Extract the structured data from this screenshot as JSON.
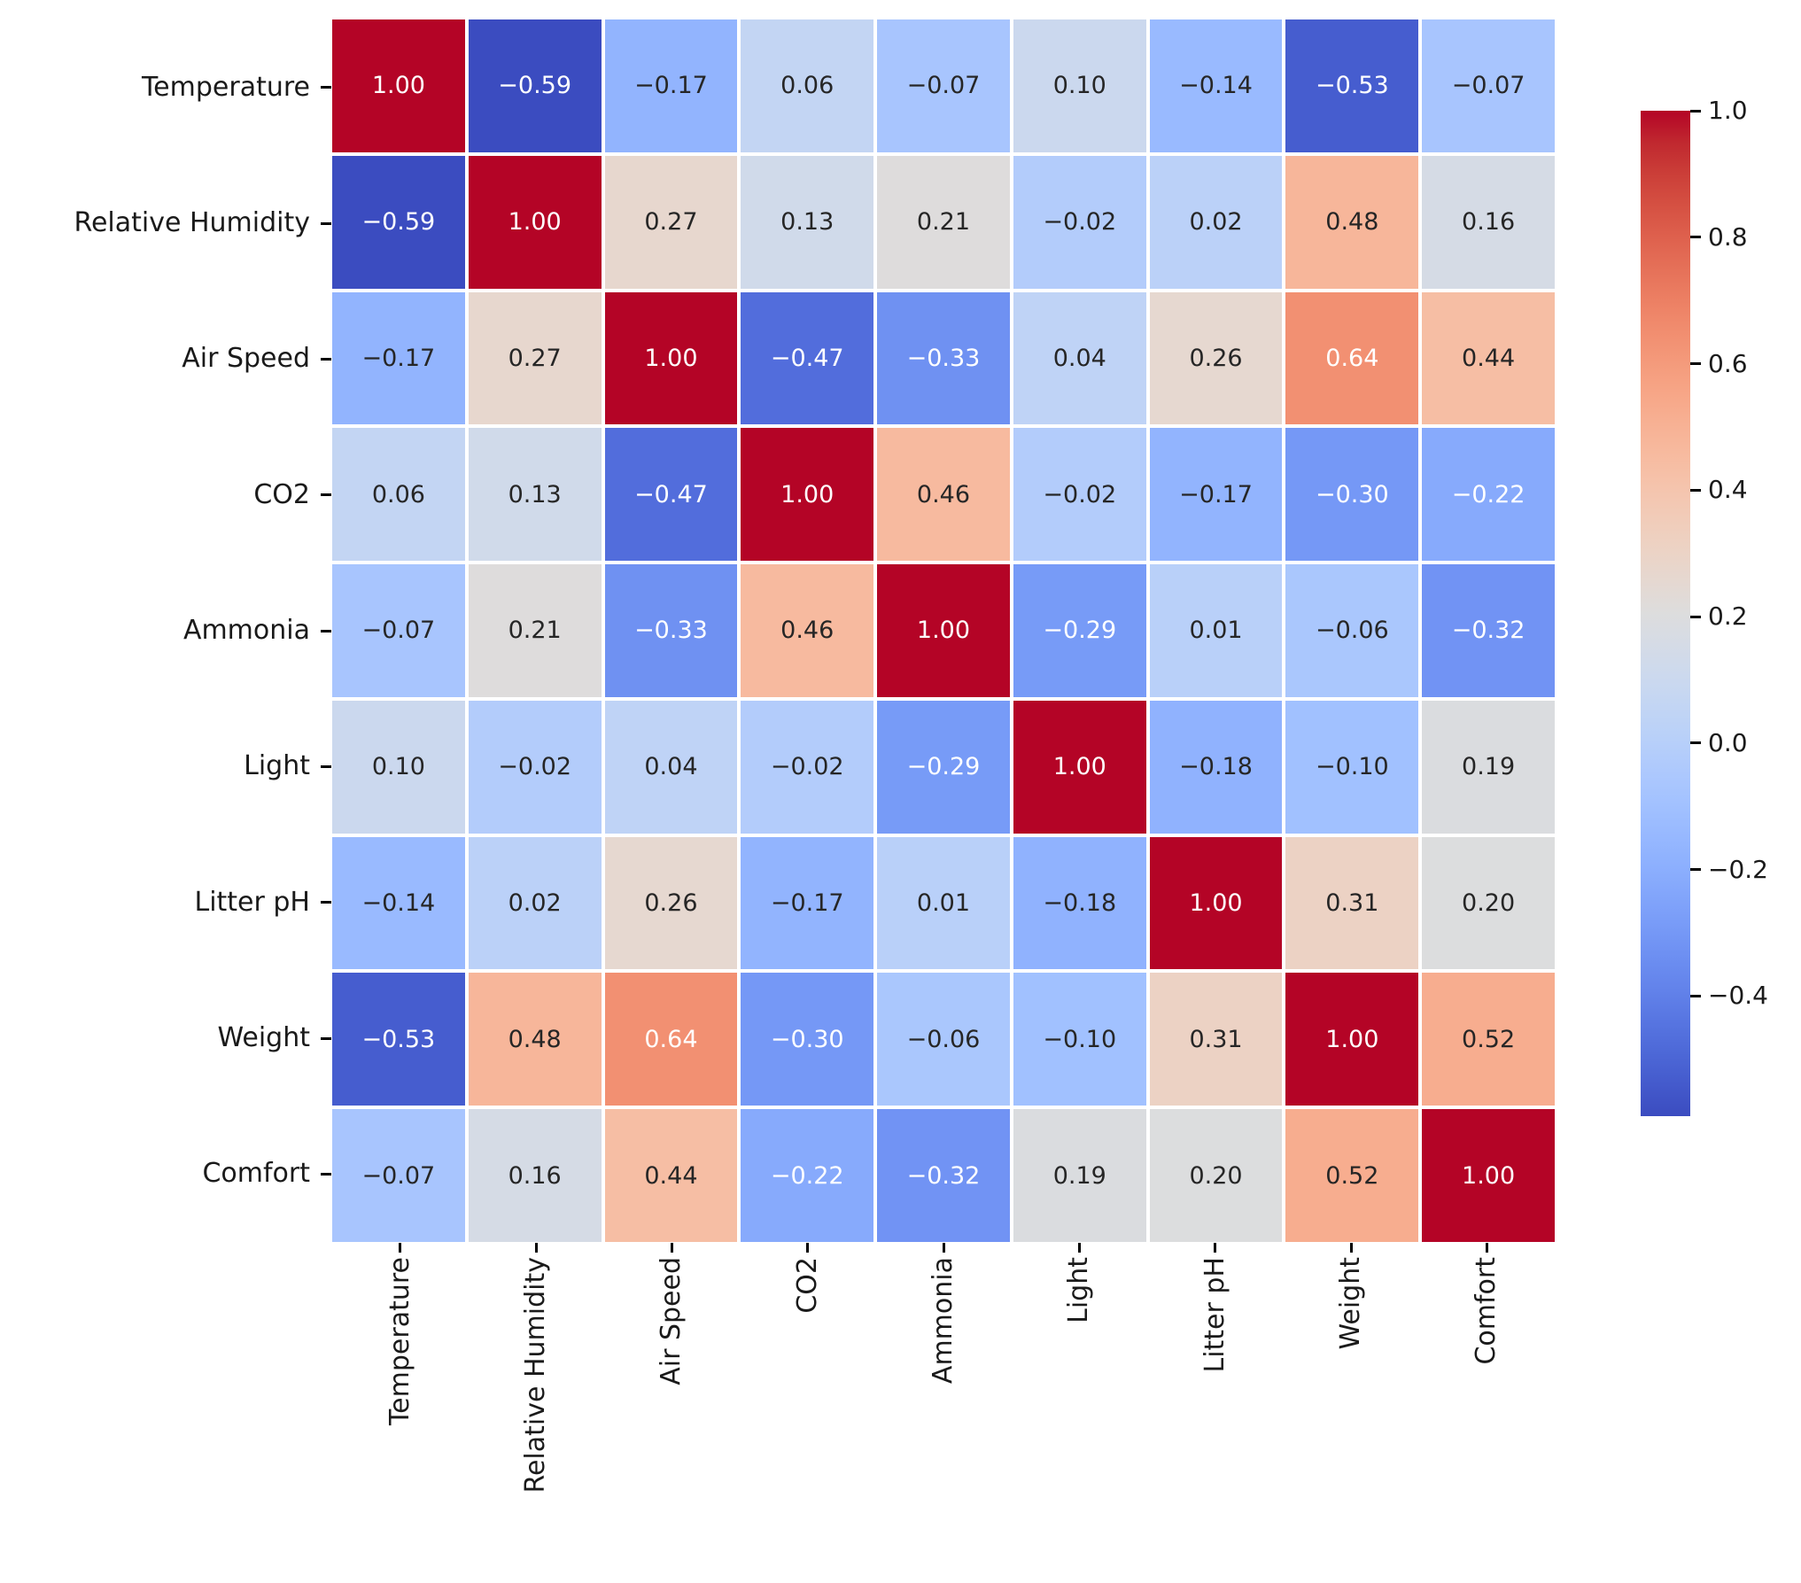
{
  "chart_data": {
    "type": "heatmap",
    "title": "",
    "xlabel": "",
    "ylabel": "",
    "labels": [
      "Temperature",
      "Relative Humidity",
      "Air Speed",
      "CO2",
      "Ammonia",
      "Light",
      "Litter pH",
      "Weight",
      "Comfort"
    ],
    "matrix": [
      [
        1.0,
        -0.59,
        -0.17,
        0.06,
        -0.07,
        0.1,
        -0.14,
        -0.53,
        -0.07
      ],
      [
        -0.59,
        1.0,
        0.27,
        0.13,
        0.21,
        -0.02,
        0.02,
        0.48,
        0.16
      ],
      [
        -0.17,
        0.27,
        1.0,
        -0.47,
        -0.33,
        0.04,
        0.26,
        0.64,
        0.44
      ],
      [
        0.06,
        0.13,
        -0.47,
        1.0,
        0.46,
        -0.02,
        -0.17,
        -0.3,
        -0.22
      ],
      [
        -0.07,
        0.21,
        -0.33,
        0.46,
        1.0,
        -0.29,
        0.01,
        -0.06,
        -0.32
      ],
      [
        0.1,
        -0.02,
        0.04,
        -0.02,
        -0.29,
        1.0,
        -0.18,
        -0.1,
        0.19
      ],
      [
        -0.14,
        0.02,
        0.26,
        -0.17,
        0.01,
        -0.18,
        1.0,
        0.31,
        0.2
      ],
      [
        -0.53,
        0.48,
        0.64,
        -0.3,
        -0.06,
        -0.1,
        0.31,
        1.0,
        0.52
      ],
      [
        -0.07,
        0.16,
        0.44,
        -0.22,
        -0.32,
        0.19,
        0.2,
        0.52,
        1.0
      ]
    ],
    "annotation_decimals": 2,
    "colormap": "coolwarm",
    "vmin": -0.59,
    "vmax": 1.0,
    "grid": false,
    "legend_position": "right-colorbar",
    "colorbar_ticks": [
      1.0,
      0.8,
      0.6,
      0.4,
      0.2,
      0.0,
      -0.2,
      -0.4
    ],
    "colorbar_tick_labels": [
      "1.0",
      "0.8",
      "0.6",
      "0.4",
      "0.2",
      "0.0",
      "−0.2",
      "−0.4"
    ],
    "annotation_color_light": "#ffffff",
    "annotation_color_dark": "#262626",
    "gridline_color": "#ffffff"
  }
}
